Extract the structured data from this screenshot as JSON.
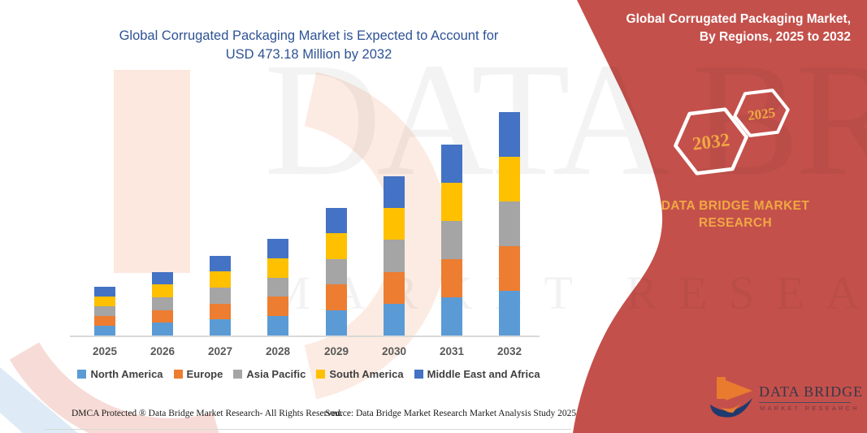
{
  "title": {
    "line1": "Global Corrugated Packaging Market is Expected to Account for",
    "line2": "USD 473.18 Million by 2032"
  },
  "sidebar": {
    "heading_line1": "Global Corrugated Packaging Market,",
    "heading_line2": "By Regions, 2025 to 2032",
    "badge_back_year": "2032",
    "badge_front_year": "2025",
    "brand_text": "DATA BRIDGE MARKET RESEARCH",
    "panel_color": "#C4504B",
    "accent_gold": "#EFA843"
  },
  "logo": {
    "name": "DATA BRIDGE",
    "subtitle": "MARKET RESEARCH"
  },
  "watermark": {
    "line1": "DATA BRIDGE",
    "line2": "MARKET RESEARCH"
  },
  "footer": {
    "dmca": "DMCA Protected ® Data Bridge Market Research-  All Rights Reserved.",
    "source": "Source: Data Bridge Market Research  Market Analysis Study 2025"
  },
  "chart_data": {
    "type": "bar",
    "stacked": true,
    "title": "Global Corrugated Packaging Market is Expected to Account for USD 473.18 Million by 2032",
    "unit": "USD Million",
    "grid": false,
    "y_axis_visible": false,
    "legend_position": "bottom",
    "categories": [
      "2025",
      "2026",
      "2027",
      "2028",
      "2029",
      "2030",
      "2031",
      "2032"
    ],
    "totals": [
      103.0,
      135.5,
      169.5,
      204.5,
      271.0,
      337.5,
      405.5,
      473.18
    ],
    "series": [
      {
        "name": "North America",
        "color": "#5B9BD5",
        "values": [
          20.6,
          27.1,
          33.9,
          40.9,
          54.2,
          67.5,
          81.1,
          94.64
        ]
      },
      {
        "name": "Europe",
        "color": "#ED7D31",
        "values": [
          20.6,
          27.1,
          33.9,
          40.9,
          54.2,
          67.5,
          81.1,
          94.64
        ]
      },
      {
        "name": "Asia Pacific",
        "color": "#A5A5A5",
        "values": [
          20.6,
          27.1,
          33.9,
          40.9,
          54.2,
          67.5,
          81.1,
          94.64
        ]
      },
      {
        "name": "South America",
        "color": "#FFC000",
        "values": [
          20.6,
          27.1,
          33.9,
          40.9,
          54.2,
          67.5,
          81.1,
          94.64
        ]
      },
      {
        "name": "Middle East and Africa",
        "color": "#4472C4",
        "values": [
          20.6,
          27.1,
          33.9,
          40.9,
          54.2,
          67.5,
          81.1,
          94.64
        ]
      }
    ]
  }
}
